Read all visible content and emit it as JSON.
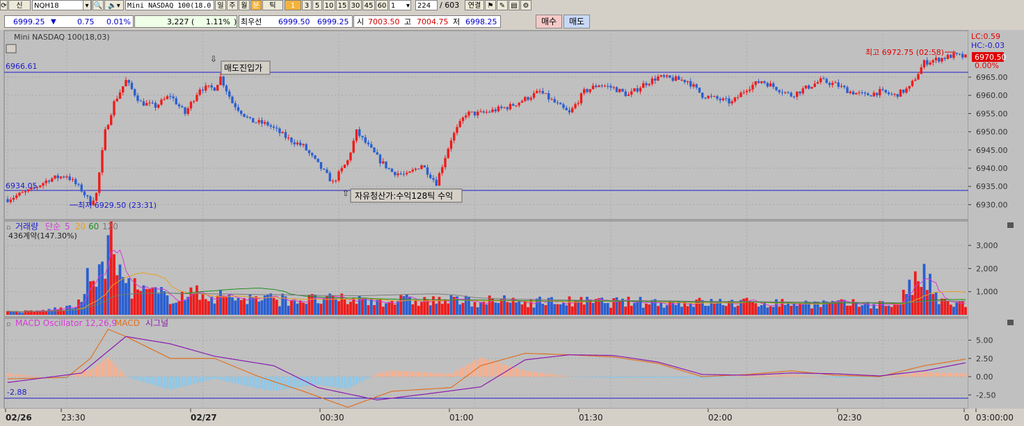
{
  "toolbar": {
    "btn1": "신",
    "symbol": "NQH18",
    "title_field": "Mini NASDAQ 100(18.0",
    "period_tabs": [
      "일",
      "주",
      "월",
      "분",
      "틱"
    ],
    "minute_values": [
      "1",
      "3",
      "5",
      "10",
      "15",
      "30",
      "45",
      "60"
    ],
    "interval": "1",
    "count": "224",
    "total": "/ 603",
    "link_label": "연결"
  },
  "quote": {
    "price": "6999.25",
    "change": "0.75",
    "change_pct": "0.01%",
    "volume": "3,227 (",
    "volume_pct": "1.11%",
    "best_bid_label": "최우선",
    "ask": "6999.50",
    "bid": "6999.25",
    "open_label": "시",
    "open": "7003.50",
    "high_label": "고",
    "high": "7004.75",
    "low_label": "저",
    "low": "6998.25",
    "buy_label": "매수",
    "sell_label": "매도"
  },
  "colors": {
    "up": "#ee1c1c",
    "down": "#2a5fd0",
    "line": "#1b1bcc",
    "ma5": "#d63ad6",
    "ma20": "#e8a020",
    "ma60": "#1f8f1f",
    "ma120": "#7a7a7a"
  },
  "price_panel": {
    "title": "Mini NASDAQ 100(18,03)",
    "lc": "LC:0.59",
    "hc": "HC:-0.03",
    "line_high_label": "6966.61",
    "line_low_label": "6934.05",
    "sell_entry_label": "매도진입가",
    "exit_label": "자유청산가:수익128틱 수익",
    "high_annot": "최고 6972.75 (02:58)",
    "low_annot": "최저 6929.50 (23:31)",
    "current_price": "6970.50",
    "current_pct": "0.00%",
    "y_ticks": [
      "6965.00",
      "6960.00",
      "6955.00",
      "6950.00",
      "6945.00",
      "6940.00",
      "6935.00",
      "6930.00"
    ]
  },
  "volume_panel": {
    "title": "거래량",
    "ma_label": "단순",
    "ma_periods": [
      "5",
      "20",
      "60",
      "120"
    ],
    "info": "436계약(147.30%)",
    "y_ticks": [
      "3,000",
      "2,000",
      "1,000"
    ]
  },
  "macd_panel": {
    "title": "MACD Oscillator 12,26,9",
    "macd_label": "MACD",
    "signal_label": "시그널",
    "line_label": "-2.88",
    "y_ticks": [
      "5.00",
      "2.50",
      "0.00",
      "-2.50"
    ]
  },
  "x_axis": {
    "labels": [
      "02/26",
      "23:30",
      "02/27",
      "00:30",
      "01:00",
      "01:30",
      "02:00",
      "02:30",
      "0",
      "03:00:00"
    ]
  },
  "chart_data": {
    "type": "candlestick",
    "y_axis_ticks": [
      6965,
      6960,
      6955,
      6950,
      6945,
      6940,
      6935,
      6930
    ],
    "reference_lines": [
      6966.61,
      6934.05
    ],
    "price_keypoints": [
      [
        0,
        6931.5
      ],
      [
        8,
        6934
      ],
      [
        14,
        6937
      ],
      [
        20,
        6938
      ],
      [
        25,
        6934
      ],
      [
        28,
        6930.5
      ],
      [
        30,
        6933
      ],
      [
        33,
        6950
      ],
      [
        36,
        6958
      ],
      [
        40,
        6964
      ],
      [
        45,
        6958
      ],
      [
        50,
        6957
      ],
      [
        55,
        6960
      ],
      [
        60,
        6955
      ],
      [
        65,
        6962
      ],
      [
        70,
        6962
      ],
      [
        72,
        6965
      ],
      [
        76,
        6958
      ],
      [
        82,
        6953
      ],
      [
        88,
        6952
      ],
      [
        95,
        6948
      ],
      [
        100,
        6946
      ],
      [
        105,
        6941
      ],
      [
        110,
        6936
      ],
      [
        115,
        6942
      ],
      [
        118,
        6950
      ],
      [
        122,
        6946
      ],
      [
        126,
        6942
      ],
      [
        130,
        6939
      ],
      [
        135,
        6938
      ],
      [
        140,
        6941
      ],
      [
        145,
        6936
      ],
      [
        150,
        6948
      ],
      [
        155,
        6955
      ],
      [
        160,
        6955
      ],
      [
        170,
        6957
      ],
      [
        180,
        6961
      ],
      [
        190,
        6955
      ],
      [
        195,
        6961
      ],
      [
        200,
        6963
      ],
      [
        205,
        6962
      ],
      [
        210,
        6960
      ],
      [
        215,
        6963
      ],
      [
        220,
        6965
      ],
      [
        230,
        6964
      ],
      [
        235,
        6960
      ],
      [
        240,
        6959
      ],
      [
        245,
        6958
      ],
      [
        250,
        6962
      ],
      [
        255,
        6964
      ],
      [
        260,
        6962
      ],
      [
        265,
        6960
      ],
      [
        270,
        6962
      ],
      [
        275,
        6964
      ],
      [
        280,
        6963
      ],
      [
        285,
        6961
      ],
      [
        290,
        6960
      ],
      [
        295,
        6961
      ],
      [
        300,
        6960
      ],
      [
        305,
        6962
      ],
      [
        310,
        6969
      ],
      [
        315,
        6970
      ],
      [
        320,
        6971
      ],
      [
        324,
        6970.5
      ]
    ],
    "volume_keypoints": [
      [
        0,
        120
      ],
      [
        10,
        150
      ],
      [
        20,
        300
      ],
      [
        25,
        500
      ],
      [
        28,
        1900
      ],
      [
        32,
        1600
      ],
      [
        34,
        3700
      ],
      [
        36,
        2200
      ],
      [
        40,
        1400
      ],
      [
        45,
        1000
      ],
      [
        55,
        800
      ],
      [
        65,
        900
      ],
      [
        80,
        700
      ],
      [
        100,
        650
      ],
      [
        150,
        600
      ],
      [
        200,
        550
      ],
      [
        250,
        520
      ],
      [
        300,
        450
      ],
      [
        310,
        1700
      ],
      [
        315,
        550
      ],
      [
        324,
        450
      ]
    ],
    "macd_keypoints": [
      [
        0,
        -0.3
      ],
      [
        20,
        -0.1
      ],
      [
        28,
        2.5
      ],
      [
        34,
        6.5
      ],
      [
        40,
        5.5
      ],
      [
        55,
        2.5
      ],
      [
        70,
        2.5
      ],
      [
        85,
        0
      ],
      [
        100,
        -2
      ],
      [
        115,
        -4.2
      ],
      [
        130,
        -2.0
      ],
      [
        150,
        -1.5
      ],
      [
        160,
        1.5
      ],
      [
        175,
        3.2
      ],
      [
        190,
        3.0
      ],
      [
        205,
        2.7
      ],
      [
        220,
        1.8
      ],
      [
        235,
        0.0
      ],
      [
        250,
        0.3
      ],
      [
        265,
        0.8
      ],
      [
        280,
        0.2
      ],
      [
        295,
        0.0
      ],
      [
        310,
        1.5
      ],
      [
        324,
        2.4
      ]
    ],
    "signal_keypoints": [
      [
        0,
        -0.8
      ],
      [
        25,
        0.5
      ],
      [
        40,
        5.5
      ],
      [
        55,
        4.5
      ],
      [
        70,
        2.8
      ],
      [
        90,
        1.5
      ],
      [
        105,
        -1.5
      ],
      [
        125,
        -3.2
      ],
      [
        145,
        -2.2
      ],
      [
        160,
        -1.4
      ],
      [
        175,
        2.3
      ],
      [
        190,
        3.0
      ],
      [
        205,
        2.9
      ],
      [
        220,
        2.0
      ],
      [
        235,
        0.3
      ],
      [
        250,
        0.2
      ],
      [
        265,
        0.5
      ],
      [
        280,
        0.4
      ],
      [
        295,
        0.1
      ],
      [
        310,
        0.8
      ],
      [
        324,
        1.9
      ]
    ],
    "x_tick_bars": [
      0,
      20,
      66,
      112,
      158,
      204,
      250,
      296
    ]
  }
}
